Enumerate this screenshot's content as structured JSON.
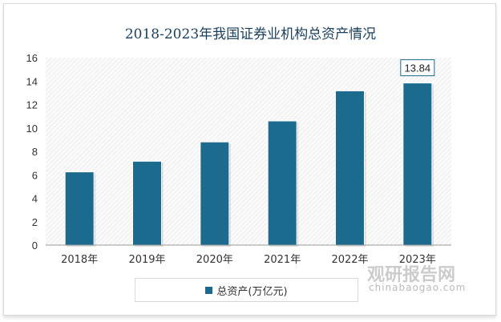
{
  "chart_data": {
    "type": "bar",
    "title": "2018-2023年我国证券业机构总资产情况",
    "categories": [
      "2018年",
      "2019年",
      "2020年",
      "2021年",
      "2022年",
      "2023年"
    ],
    "series": [
      {
        "name": "总资产(万亿元)",
        "values": [
          6.25,
          7.16,
          8.81,
          10.6,
          13.17,
          13.84
        ]
      }
    ],
    "data_labels": [
      {
        "category": "2023年",
        "text": "13.84"
      }
    ],
    "ylim": [
      0,
      16
    ],
    "yticks": [
      0,
      2,
      4,
      6,
      8,
      10,
      12,
      14,
      16
    ],
    "xlabel": "",
    "ylabel": "",
    "grid": false,
    "legend": "bottom",
    "color": "#1c6b8e"
  },
  "watermark": {
    "brand": "观研报告网",
    "site": "chinabaogao.com"
  }
}
